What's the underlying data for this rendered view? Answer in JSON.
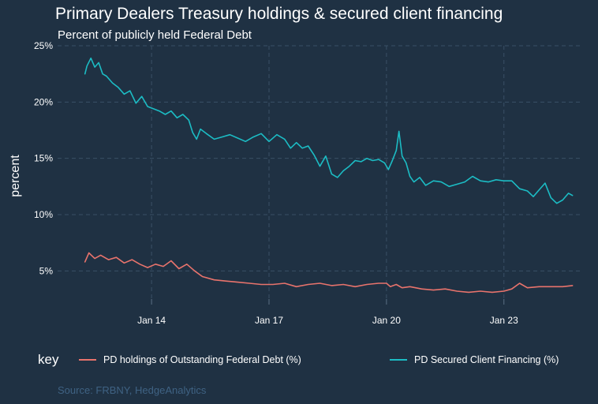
{
  "title": "Primary Dealers Treasury holdings & secured client financing",
  "subtitle": "Percent of publicly held Federal Debt",
  "source": "Source: FRBNY, HedgeAnalytics",
  "legend": {
    "key_label": "key",
    "items": [
      {
        "label": "PD holdings of Outstanding Federal Debt (%)",
        "color": "#e8736c"
      },
      {
        "label": "PD Secured Client Financing (%)",
        "color": "#1cbcc4"
      }
    ]
  },
  "chart_data": {
    "type": "line",
    "title": "Primary Dealers Treasury holdings & secured client financing",
    "subtitle": "Percent of publicly held Federal Debt",
    "ylabel": "percent",
    "xlabel": "",
    "ylim": [
      2.5,
      25
    ],
    "xlim": [
      2011.6,
      2025.0
    ],
    "y_ticks": [
      5,
      10,
      15,
      20,
      25
    ],
    "y_tick_labels": [
      "5%",
      "10%",
      "15%",
      "20%",
      "25%"
    ],
    "x_ticks": [
      2014,
      2017,
      2020,
      2023
    ],
    "x_tick_labels": [
      "Jan 14",
      "Jan 17",
      "Jan 20",
      "Jan 23"
    ],
    "grid": true,
    "legend_position": "bottom",
    "series": [
      {
        "name": "PD holdings of Outstanding Federal Debt (%)",
        "color": "#e8736c",
        "x": [
          2012.3,
          2012.4,
          2012.55,
          2012.7,
          2012.9,
          2013.1,
          2013.3,
          2013.5,
          2013.7,
          2013.9,
          2014.1,
          2014.3,
          2014.5,
          2014.7,
          2014.9,
          2015.1,
          2015.3,
          2015.6,
          2015.9,
          2016.2,
          2016.5,
          2016.8,
          2017.1,
          2017.4,
          2017.7,
          2018.0,
          2018.3,
          2018.6,
          2018.9,
          2019.2,
          2019.5,
          2019.8,
          2020.0,
          2020.1,
          2020.25,
          2020.4,
          2020.6,
          2020.9,
          2021.2,
          2021.5,
          2021.8,
          2022.1,
          2022.4,
          2022.7,
          2023.0,
          2023.2,
          2023.4,
          2023.6,
          2023.9,
          2024.2,
          2024.5,
          2024.75
        ],
        "values": [
          5.8,
          6.6,
          6.1,
          6.4,
          6.0,
          6.2,
          5.7,
          6.0,
          5.6,
          5.3,
          5.6,
          5.4,
          5.9,
          5.2,
          5.6,
          5.0,
          4.5,
          4.2,
          4.1,
          4.0,
          3.9,
          3.8,
          3.8,
          3.9,
          3.6,
          3.8,
          3.9,
          3.7,
          3.8,
          3.6,
          3.8,
          3.9,
          3.9,
          3.6,
          3.8,
          3.5,
          3.6,
          3.4,
          3.3,
          3.4,
          3.2,
          3.1,
          3.2,
          3.1,
          3.2,
          3.4,
          3.9,
          3.5,
          3.6,
          3.6,
          3.6,
          3.7
        ]
      },
      {
        "name": "PD Secured Client Financing (%)",
        "color": "#1cbcc4",
        "x": [
          2012.3,
          2012.35,
          2012.45,
          2012.55,
          2012.65,
          2012.75,
          2012.85,
          2013.0,
          2013.15,
          2013.3,
          2013.45,
          2013.6,
          2013.75,
          2013.9,
          2014.05,
          2014.2,
          2014.35,
          2014.5,
          2014.65,
          2014.8,
          2014.95,
          2015.05,
          2015.15,
          2015.25,
          2015.4,
          2015.6,
          2015.8,
          2016.0,
          2016.2,
          2016.4,
          2016.6,
          2016.8,
          2017.0,
          2017.2,
          2017.4,
          2017.55,
          2017.7,
          2017.85,
          2018.0,
          2018.15,
          2018.3,
          2018.45,
          2018.6,
          2018.75,
          2018.9,
          2019.05,
          2019.2,
          2019.35,
          2019.5,
          2019.65,
          2019.8,
          2019.95,
          2020.05,
          2020.15,
          2020.25,
          2020.32,
          2020.4,
          2020.5,
          2020.6,
          2020.7,
          2020.85,
          2021.0,
          2021.2,
          2021.4,
          2021.6,
          2021.8,
          2022.0,
          2022.2,
          2022.4,
          2022.6,
          2022.8,
          2023.0,
          2023.2,
          2023.4,
          2023.6,
          2023.75,
          2023.9,
          2024.05,
          2024.2,
          2024.35,
          2024.5,
          2024.65,
          2024.75
        ],
        "values": [
          22.5,
          23.2,
          23.9,
          23.1,
          23.5,
          22.5,
          22.3,
          21.7,
          21.3,
          20.7,
          21.0,
          19.9,
          20.5,
          19.6,
          19.4,
          19.2,
          18.9,
          19.2,
          18.6,
          18.9,
          18.4,
          17.3,
          16.7,
          17.6,
          17.2,
          16.7,
          16.9,
          17.1,
          16.8,
          16.5,
          16.9,
          17.2,
          16.5,
          17.1,
          16.7,
          15.9,
          16.4,
          15.9,
          16.1,
          15.3,
          14.3,
          15.2,
          13.6,
          13.3,
          13.9,
          14.3,
          14.8,
          14.7,
          15.0,
          14.8,
          14.9,
          14.6,
          14.0,
          14.8,
          15.7,
          17.4,
          15.2,
          14.6,
          13.4,
          12.9,
          13.3,
          12.6,
          13.0,
          12.9,
          12.5,
          12.7,
          12.9,
          13.4,
          13.0,
          12.9,
          13.1,
          13.0,
          13.0,
          12.3,
          12.1,
          11.6,
          12.2,
          12.8,
          11.5,
          11.0,
          11.3,
          11.9,
          11.7
        ]
      }
    ]
  }
}
